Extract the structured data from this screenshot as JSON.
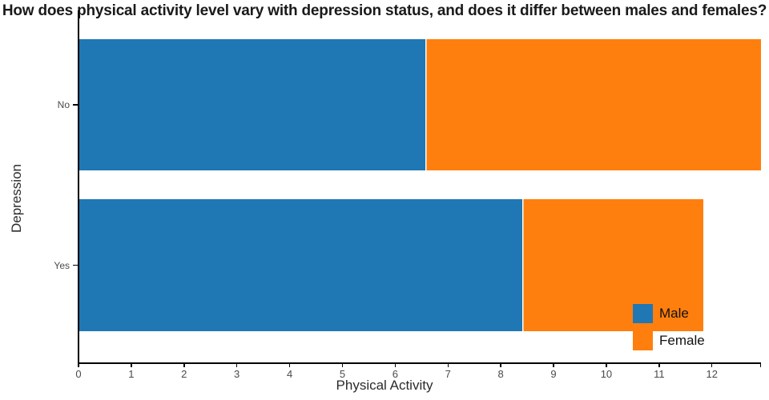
{
  "title": "How does physical activity level vary with depression status, and does it differ between males and females?",
  "chart_data": {
    "type": "bar",
    "orientation": "horizontal",
    "stacked": true,
    "title": "How does physical activity level vary with depression status, and does it differ between males and females?",
    "xlabel": "Physical Activity",
    "ylabel": "Depression",
    "categories": [
      "No",
      "Yes"
    ],
    "series": [
      {
        "name": "Male",
        "color": "#1f77b4",
        "values": [
          6.57,
          8.4
        ]
      },
      {
        "name": "Female",
        "color": "#ff7f0e",
        "values": [
          6.36,
          3.43
        ]
      }
    ],
    "stack_totals": [
      12.93,
      11.83
    ],
    "xlim": [
      0,
      12.93
    ],
    "x_ticks": [
      0,
      1,
      2,
      3,
      4,
      5,
      6,
      7,
      8,
      9,
      10,
      11,
      12
    ],
    "grid": false,
    "legend_position": "bottom-right"
  },
  "legend": {
    "items": [
      {
        "label": "Male",
        "color": "#1f77b4"
      },
      {
        "label": "Female",
        "color": "#ff7f0e"
      }
    ]
  }
}
